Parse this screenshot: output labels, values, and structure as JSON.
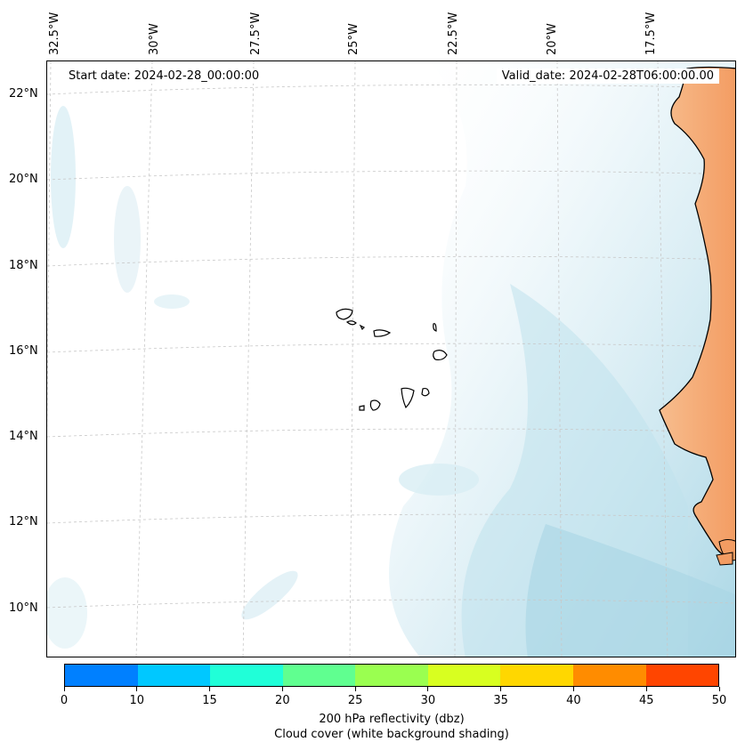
{
  "map": {
    "lon_labels": [
      "32.5°W",
      "30°W",
      "27.5°W",
      "25°W",
      "22.5°W",
      "20°W",
      "17.5°W"
    ],
    "lat_labels": [
      "22°N",
      "20°N",
      "18°N",
      "16°N",
      "14°N",
      "12°N",
      "10°N"
    ],
    "start_date": "Start date: 2024-02-28_00:00:00",
    "valid_date": "Valid_date: 2024-02-28T06:00:00.00",
    "colors": {
      "land": "#f5b07a",
      "land_dark": "#f09a5e",
      "cloud": "#aed8e6",
      "cloud_light": "#e4f3f8",
      "coastline": "#000000",
      "gridline": "#c8c8c8"
    }
  },
  "colorbar": {
    "ticks": [
      "0",
      "10",
      "15",
      "20",
      "25",
      "30",
      "35",
      "40",
      "45",
      "50"
    ],
    "colors": [
      "#0080ff",
      "#00c8ff",
      "#20ffd8",
      "#60ff90",
      "#9aff50",
      "#d8ff20",
      "#ffd700",
      "#ff8c00",
      "#ff4500"
    ],
    "label_line1": "200 hPa reflectivity (dbz)",
    "label_line2": "Cloud cover (white background shading)"
  }
}
